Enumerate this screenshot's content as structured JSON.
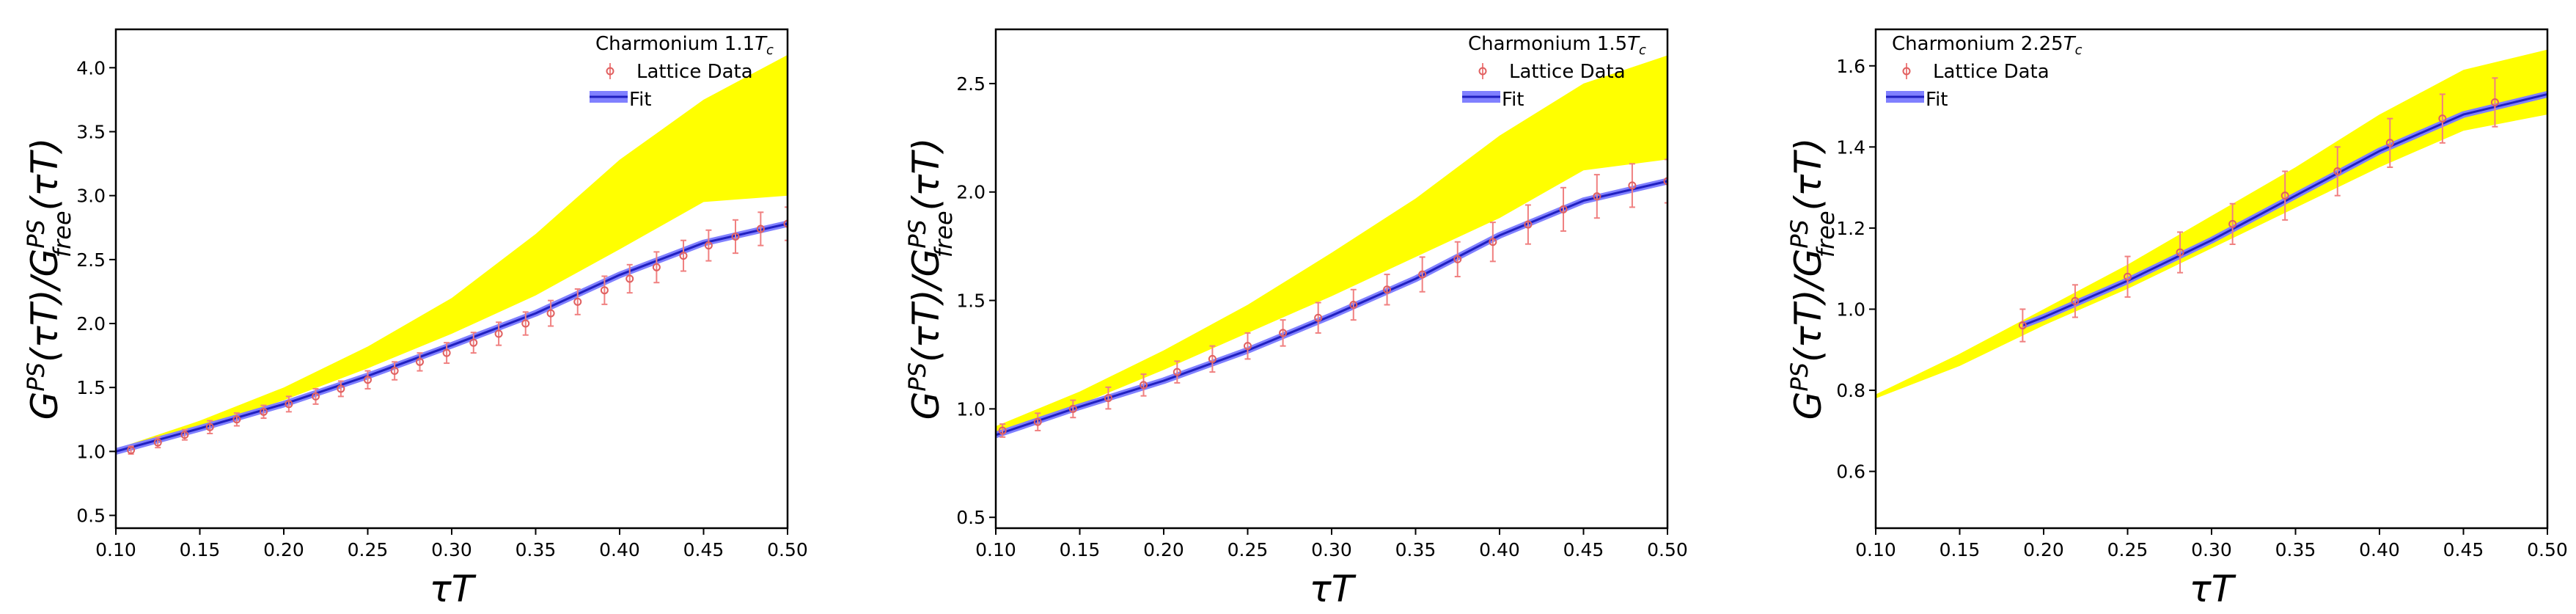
{
  "figure": {
    "panels": [
      {
        "title_text": "Charmonium 1.1",
        "title_sub": "c",
        "legend_data": "Lattice Data",
        "legend_fit": "Fit",
        "xlabel": "τT",
        "ylabel_lines": [
          {
            "t": "G",
            "cls": "base"
          },
          {
            "t": "PS",
            "cls": "sup"
          },
          {
            "t": "(τT)/G",
            "cls": "base"
          },
          {
            "t": "PS",
            "cls": "sup"
          },
          {
            "t": "free",
            "cls": "sub"
          },
          {
            "t": "(τT)",
            "cls": "base"
          }
        ]
      },
      {
        "title_text": "Charmonium 1.5",
        "title_sub": "c",
        "legend_data": "Lattice Data",
        "legend_fit": "Fit",
        "xlabel": "τT"
      },
      {
        "title_text": "Charmonium 2.25",
        "title_sub": "c",
        "legend_data": "Lattice Data",
        "legend_fit": "Fit",
        "xlabel": "τT"
      }
    ]
  },
  "chart_data": [
    {
      "type": "line",
      "title": "Charmonium 1.1T_c",
      "xlabel": "τT",
      "ylabel": "G^PS(τT)/G^PS_free(τT)",
      "xlim": [
        0.1,
        0.5
      ],
      "ylim": [
        0.4,
        4.3
      ],
      "xticks": [
        "0.10",
        "0.15",
        "0.20",
        "0.25",
        "0.30",
        "0.35",
        "0.40",
        "0.45",
        "0.50"
      ],
      "yticks": [
        "0.5",
        "1.0",
        "1.5",
        "2.0",
        "2.5",
        "3.0",
        "3.5",
        "4.0"
      ],
      "legend": [
        "Lattice Data",
        "Fit"
      ],
      "band": {
        "x": [
          0.1,
          0.15,
          0.2,
          0.25,
          0.3,
          0.35,
          0.4,
          0.45,
          0.5
        ],
        "lower": [
          1.0,
          1.18,
          1.4,
          1.65,
          1.92,
          2.22,
          2.58,
          2.95,
          3.0
        ],
        "upper": [
          1.02,
          1.24,
          1.5,
          1.82,
          2.2,
          2.7,
          3.28,
          3.75,
          4.1
        ]
      },
      "fit": {
        "x": [
          0.1,
          0.15,
          0.2,
          0.25,
          0.3,
          0.35,
          0.4,
          0.45,
          0.5
        ],
        "y": [
          1.0,
          1.18,
          1.37,
          1.59,
          1.83,
          2.08,
          2.38,
          2.63,
          2.78
        ]
      },
      "data": {
        "x": [
          0.109,
          0.125,
          0.141,
          0.156,
          0.172,
          0.188,
          0.203,
          0.219,
          0.234,
          0.25,
          0.266,
          0.281,
          0.297,
          0.313,
          0.328,
          0.344,
          0.359,
          0.375,
          0.391,
          0.406,
          0.422,
          0.438,
          0.453,
          0.469,
          0.484,
          0.5
        ],
        "y": [
          1.01,
          1.07,
          1.13,
          1.19,
          1.25,
          1.31,
          1.37,
          1.43,
          1.49,
          1.56,
          1.63,
          1.7,
          1.77,
          1.85,
          1.92,
          2.0,
          2.08,
          2.17,
          2.26,
          2.35,
          2.44,
          2.53,
          2.61,
          2.68,
          2.74,
          2.78
        ],
        "err": [
          0.03,
          0.04,
          0.04,
          0.05,
          0.05,
          0.05,
          0.06,
          0.06,
          0.06,
          0.07,
          0.07,
          0.07,
          0.08,
          0.08,
          0.09,
          0.09,
          0.1,
          0.1,
          0.11,
          0.11,
          0.12,
          0.12,
          0.12,
          0.13,
          0.13,
          0.13
        ]
      }
    },
    {
      "type": "line",
      "title": "Charmonium 1.5T_c",
      "xlabel": "τT",
      "ylabel": "G^PS(τT)/G^PS_free(τT)",
      "xlim": [
        0.1,
        0.5
      ],
      "ylim": [
        0.45,
        2.75
      ],
      "xticks": [
        "0.10",
        "0.15",
        "0.20",
        "0.25",
        "0.30",
        "0.35",
        "0.40",
        "0.45",
        "0.50"
      ],
      "yticks": [
        "0.5",
        "1.0",
        "1.5",
        "2.0",
        "2.5"
      ],
      "legend": [
        "Lattice Data",
        "Fit"
      ],
      "band": {
        "x": [
          0.1,
          0.15,
          0.2,
          0.25,
          0.3,
          0.35,
          0.4,
          0.45,
          0.5
        ],
        "lower": [
          0.89,
          1.02,
          1.18,
          1.35,
          1.52,
          1.7,
          1.88,
          2.1,
          2.15
        ],
        "upper": [
          0.92,
          1.08,
          1.27,
          1.48,
          1.72,
          1.97,
          2.26,
          2.5,
          2.63
        ]
      },
      "fit": {
        "x": [
          0.1,
          0.15,
          0.2,
          0.25,
          0.3,
          0.35,
          0.4,
          0.45,
          0.5
        ],
        "y": [
          0.88,
          1.01,
          1.13,
          1.27,
          1.43,
          1.6,
          1.8,
          1.96,
          2.05
        ]
      },
      "data": {
        "x": [
          0.104,
          0.125,
          0.146,
          0.167,
          0.188,
          0.208,
          0.229,
          0.25,
          0.271,
          0.292,
          0.313,
          0.333,
          0.354,
          0.375,
          0.396,
          0.417,
          0.438,
          0.458,
          0.479,
          0.5
        ],
        "y": [
          0.9,
          0.94,
          1.0,
          1.05,
          1.11,
          1.17,
          1.23,
          1.29,
          1.35,
          1.42,
          1.48,
          1.55,
          1.62,
          1.69,
          1.77,
          1.85,
          1.92,
          1.98,
          2.03,
          2.05
        ],
        "err": [
          0.03,
          0.04,
          0.04,
          0.05,
          0.05,
          0.05,
          0.06,
          0.06,
          0.06,
          0.07,
          0.07,
          0.07,
          0.08,
          0.08,
          0.09,
          0.09,
          0.1,
          0.1,
          0.1,
          0.1
        ]
      }
    },
    {
      "type": "line",
      "title": "Charmonium 2.25T_c",
      "xlabel": "τT",
      "ylabel": "G^PS(τT)/G^PS_free(τT)",
      "xlim": [
        0.1,
        0.5
      ],
      "ylim": [
        0.46,
        1.69
      ],
      "xticks": [
        "0.10",
        "0.15",
        "0.20",
        "0.25",
        "0.30",
        "0.35",
        "0.40",
        "0.45",
        "0.50"
      ],
      "yticks": [
        "0.6",
        "0.8",
        "1.0",
        "1.2",
        "1.4",
        "1.6"
      ],
      "legend": [
        "Lattice Data",
        "Fit"
      ],
      "band": {
        "x": [
          0.1,
          0.15,
          0.2,
          0.25,
          0.3,
          0.35,
          0.4,
          0.45,
          0.5
        ],
        "lower": [
          0.78,
          0.86,
          0.96,
          1.05,
          1.15,
          1.25,
          1.35,
          1.44,
          1.48
        ],
        "upper": [
          0.79,
          0.89,
          1.0,
          1.11,
          1.23,
          1.35,
          1.48,
          1.59,
          1.64
        ]
      },
      "fit": {
        "x": [
          0.1875,
          0.2,
          0.25,
          0.3,
          0.35,
          0.4,
          0.45,
          0.5
        ],
        "y": [
          0.96,
          0.98,
          1.07,
          1.17,
          1.28,
          1.39,
          1.48,
          1.53
        ]
      },
      "data": {
        "x": [
          0.1875,
          0.21875,
          0.25,
          0.28125,
          0.3125,
          0.34375,
          0.375,
          0.40625,
          0.4375,
          0.46875
        ],
        "y": [
          0.96,
          1.02,
          1.08,
          1.14,
          1.21,
          1.28,
          1.34,
          1.41,
          1.47,
          1.51
        ],
        "err": [
          0.04,
          0.04,
          0.05,
          0.05,
          0.05,
          0.06,
          0.06,
          0.06,
          0.06,
          0.06
        ]
      }
    }
  ]
}
